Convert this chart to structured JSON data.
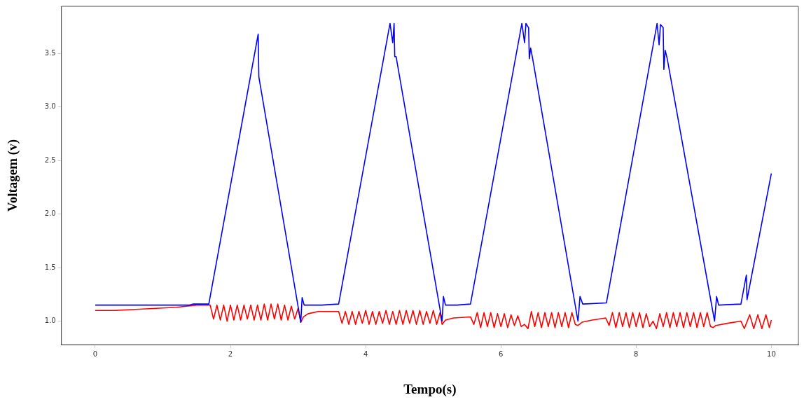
{
  "chart_data": {
    "type": "line",
    "xlabel": "Tempo(s)",
    "ylabel": "Voltagem (v)",
    "xlim": [
      -0.5,
      10.4
    ],
    "ylim": [
      0.78,
      3.94
    ],
    "xticks": [
      0,
      2,
      4,
      6,
      8,
      10
    ],
    "yticks": [
      {
        "value": 1,
        "label": "1.0"
      },
      {
        "value": 1.5,
        "label": "1.5"
      },
      {
        "value": 2,
        "label": "2.0"
      },
      {
        "value": 2.5,
        "label": "2.5"
      },
      {
        "value": 3,
        "label": "3.0"
      },
      {
        "value": 3.5,
        "label": "3.5"
      }
    ],
    "grid": false,
    "legend": false,
    "marker": "none",
    "series": [
      {
        "color": "#0000ff",
        "x": [
          0,
          0.5,
          1.0,
          1.4,
          1.45,
          1.68,
          2.41,
          2.42,
          3.04,
          3.06,
          3.09,
          3.35,
          3.6,
          4.36,
          4.4,
          4.42,
          4.43,
          4.45,
          5.13,
          5.15,
          5.18,
          5.35,
          5.55,
          6.31,
          6.35,
          6.37,
          6.41,
          6.42,
          6.44,
          6.47,
          7.14,
          7.17,
          7.21,
          7.56,
          8.31,
          8.34,
          8.36,
          8.4,
          8.41,
          8.43,
          8.46,
          9.16,
          9.19,
          9.22,
          9.55,
          9.63,
          9.64,
          10.0
        ],
        "values": [
          1.15,
          1.15,
          1.15,
          1.15,
          1.16,
          1.16,
          3.68,
          3.28,
          0.99,
          1.22,
          1.15,
          1.15,
          1.16,
          3.78,
          3.6,
          3.78,
          3.47,
          3.47,
          1.0,
          1.23,
          1.15,
          1.15,
          1.16,
          3.78,
          3.6,
          3.78,
          3.74,
          3.45,
          3.55,
          3.45,
          1.0,
          1.23,
          1.16,
          1.17,
          3.78,
          3.58,
          3.77,
          3.74,
          3.35,
          3.53,
          3.45,
          1.0,
          1.23,
          1.15,
          1.16,
          1.43,
          1.2,
          2.38
        ]
      },
      {
        "color": "#ff0000",
        "x": [
          0,
          0.3,
          0.6,
          0.9,
          1.2,
          1.5,
          1.7,
          1.75,
          1.8,
          1.85,
          1.9,
          1.95,
          2.0,
          2.05,
          2.1,
          2.15,
          2.2,
          2.25,
          2.3,
          2.35,
          2.4,
          2.45,
          2.5,
          2.55,
          2.6,
          2.65,
          2.7,
          2.75,
          2.8,
          2.85,
          2.9,
          2.95,
          3.0,
          3.04,
          3.08,
          3.15,
          3.3,
          3.6,
          3.65,
          3.7,
          3.75,
          3.8,
          3.85,
          3.9,
          3.95,
          4.0,
          4.05,
          4.1,
          4.15,
          4.2,
          4.25,
          4.3,
          4.35,
          4.4,
          4.45,
          4.5,
          4.55,
          4.6,
          4.65,
          4.7,
          4.75,
          4.8,
          4.85,
          4.9,
          4.95,
          5.0,
          5.05,
          5.1,
          5.13,
          5.18,
          5.3,
          5.55,
          5.6,
          5.65,
          5.7,
          5.75,
          5.8,
          5.85,
          5.9,
          5.95,
          6.0,
          6.05,
          6.1,
          6.15,
          6.2,
          6.25,
          6.3,
          6.35,
          6.4,
          6.45,
          6.5,
          6.55,
          6.6,
          6.65,
          6.7,
          6.75,
          6.8,
          6.85,
          6.9,
          6.95,
          7.0,
          7.05,
          7.1,
          7.14,
          7.2,
          7.35,
          7.55,
          7.6,
          7.65,
          7.7,
          7.75,
          7.8,
          7.85,
          7.9,
          7.95,
          8.0,
          8.05,
          8.1,
          8.15,
          8.2,
          8.25,
          8.3,
          8.35,
          8.4,
          8.45,
          8.5,
          8.55,
          8.6,
          8.65,
          8.7,
          8.75,
          8.8,
          8.85,
          8.9,
          8.95,
          9.0,
          9.05,
          9.1,
          9.14,
          9.18,
          9.35,
          9.55,
          9.6,
          9.68,
          9.74,
          9.8,
          9.86,
          9.92,
          9.97,
          10.0
        ],
        "values": [
          1.1,
          1.1,
          1.11,
          1.12,
          1.13,
          1.15,
          1.15,
          1.02,
          1.15,
          1.01,
          1.15,
          1.0,
          1.15,
          1.01,
          1.15,
          1.01,
          1.15,
          1.02,
          1.15,
          1.01,
          1.15,
          1.01,
          1.16,
          1.01,
          1.16,
          1.02,
          1.16,
          1.01,
          1.15,
          1.01,
          1.14,
          1.02,
          1.12,
          0.99,
          1.04,
          1.07,
          1.09,
          1.09,
          0.98,
          1.09,
          0.97,
          1.09,
          0.97,
          1.09,
          0.98,
          1.1,
          0.97,
          1.09,
          0.97,
          1.09,
          0.98,
          1.1,
          0.97,
          1.09,
          0.97,
          1.1,
          0.97,
          1.1,
          0.98,
          1.1,
          0.97,
          1.1,
          0.97,
          1.09,
          0.98,
          1.1,
          0.97,
          1.08,
          0.97,
          1.01,
          1.03,
          1.04,
          0.97,
          1.08,
          0.94,
          1.08,
          0.95,
          1.08,
          0.94,
          1.07,
          0.95,
          1.07,
          0.94,
          1.06,
          0.96,
          1.05,
          0.95,
          0.97,
          0.93,
          1.09,
          0.95,
          1.08,
          0.94,
          1.08,
          0.95,
          1.08,
          0.94,
          1.08,
          0.95,
          1.08,
          0.94,
          1.08,
          0.97,
          0.96,
          0.99,
          1.01,
          1.03,
          0.96,
          1.08,
          0.94,
          1.08,
          0.95,
          1.08,
          0.94,
          1.08,
          0.95,
          1.08,
          0.94,
          1.07,
          0.95,
          1.0,
          0.93,
          1.07,
          0.95,
          1.08,
          0.94,
          1.08,
          0.95,
          1.08,
          0.94,
          1.08,
          0.95,
          1.08,
          0.94,
          1.08,
          0.95,
          1.08,
          0.95,
          0.94,
          0.96,
          0.98,
          1.0,
          0.93,
          1.06,
          0.93,
          1.06,
          0.93,
          1.06,
          0.94,
          1.01
        ]
      }
    ]
  }
}
